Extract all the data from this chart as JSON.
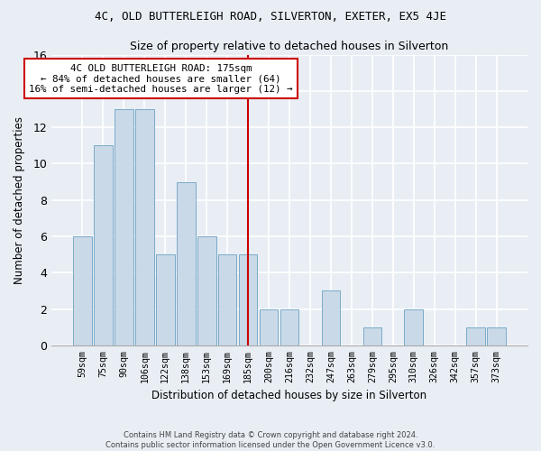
{
  "title": "4C, OLD BUTTERLEIGH ROAD, SILVERTON, EXETER, EX5 4JE",
  "subtitle": "Size of property relative to detached houses in Silverton",
  "xlabel": "Distribution of detached houses by size in Silverton",
  "ylabel": "Number of detached properties",
  "categories": [
    "59sqm",
    "75sqm",
    "90sqm",
    "106sqm",
    "122sqm",
    "138sqm",
    "153sqm",
    "169sqm",
    "185sqm",
    "200sqm",
    "216sqm",
    "232sqm",
    "247sqm",
    "263sqm",
    "279sqm",
    "295sqm",
    "310sqm",
    "326sqm",
    "342sqm",
    "357sqm",
    "373sqm"
  ],
  "values": [
    6,
    11,
    13,
    13,
    5,
    9,
    6,
    5,
    5,
    2,
    2,
    0,
    3,
    0,
    1,
    0,
    2,
    0,
    0,
    1,
    1
  ],
  "bar_color": "#cad9e8",
  "bar_edge_color": "#7aaac8",
  "highlight_index": 8,
  "highlight_color": "#cc0000",
  "ylim": [
    0,
    16
  ],
  "yticks": [
    0,
    2,
    4,
    6,
    8,
    10,
    12,
    14,
    16
  ],
  "annotation_line1": "4C OLD BUTTERLEIGH ROAD: 175sqm",
  "annotation_line2": "← 84% of detached houses are smaller (64)",
  "annotation_line3": "16% of semi-detached houses are larger (12) →",
  "footer_line1": "Contains HM Land Registry data © Crown copyright and database right 2024.",
  "footer_line2": "Contains public sector information licensed under the Open Government Licence v3.0.",
  "background_color": "#e8eef4",
  "plot_bg_color": "#e8eef4",
  "grid_color": "#ffffff",
  "title_fontsize": 9,
  "subtitle_fontsize": 9,
  "bar_width": 0.9
}
